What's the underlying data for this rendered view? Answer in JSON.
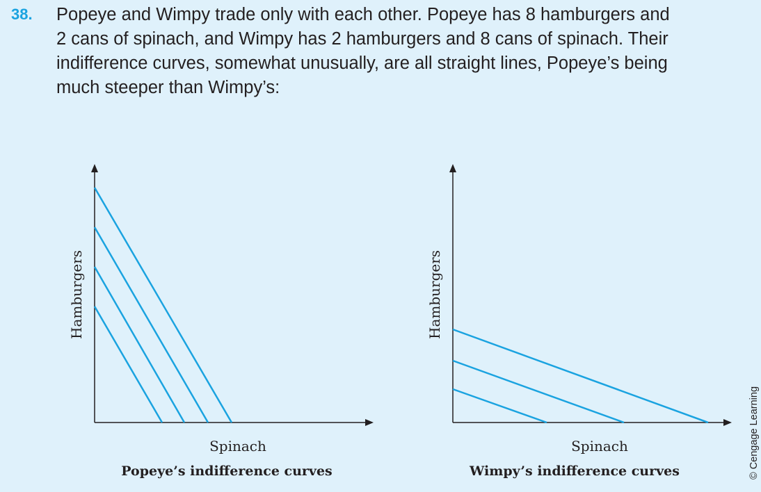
{
  "problem": {
    "number": "38.",
    "lines": [
      "Popeye and Wimpy trade only with each other. Popeye has 8 hamburgers and",
      "2 cans of spinach, and Wimpy has 2 hamburgers and 8 cans of spinach. Their",
      "indifference curves, somewhat unusually, are all straight lines, Popeye’s being",
      "much steeper than Wimpy’s:"
    ]
  },
  "figures": [
    {
      "y_axis_label": "Hamburgers",
      "x_axis_label": "Spinach",
      "caption": "Popeye’s indifference curves"
    },
    {
      "y_axis_label": "Hamburgers",
      "x_axis_label": "Spinach",
      "caption": "Wimpy’s indifference curves"
    }
  ],
  "credit": "© Cengage Learning",
  "colors": {
    "accent": "#1aa3e0",
    "curve": "#1aa3e0",
    "background": "#dff1fb",
    "axis": "#231f20"
  }
}
